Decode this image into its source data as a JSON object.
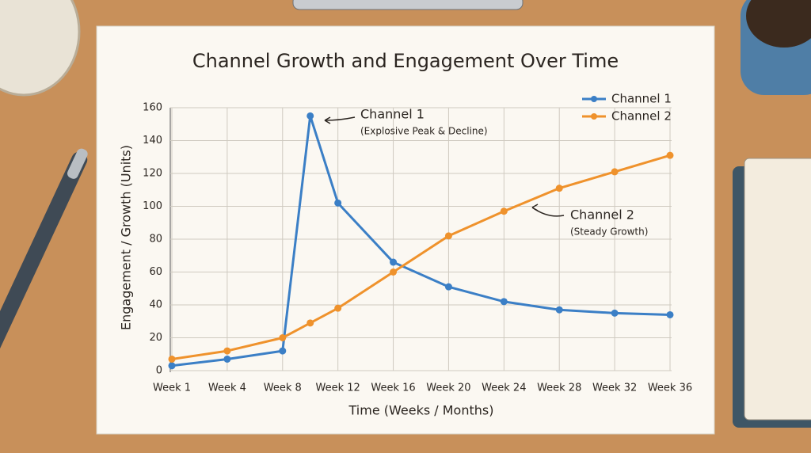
{
  "chart_data": {
    "type": "line",
    "title": "Channel Growth and Engagement Over Time",
    "x_label": "Time (Weeks / Months)",
    "y_label": "Engagement / Growth (Units)",
    "categories": [
      "Week 1",
      "Week 4",
      "Week 8",
      null,
      "Week 12",
      "Week 16",
      "Week 20",
      "Week 24",
      "Week 28",
      "Week 32",
      "Week 36"
    ],
    "series": [
      {
        "name": "Channel 1",
        "color": "#3b7fc6",
        "values": [
          3,
          7,
          12,
          155,
          102,
          66,
          51,
          42,
          37,
          35,
          34
        ]
      },
      {
        "name": "Channel 2",
        "color": "#ef922c",
        "values": [
          7,
          12,
          20,
          29,
          38,
          60,
          82,
          97,
          111,
          121,
          131
        ]
      }
    ],
    "annotations": [
      {
        "title": "Channel 1",
        "text": "(Explosive Peak & Decline)"
      },
      {
        "title": "Channel 2",
        "text": "(Steady Growth)"
      }
    ],
    "ylim": [
      0,
      160
    ],
    "yticks": [
      0,
      20,
      40,
      60,
      80,
      100,
      120,
      140,
      160
    ],
    "grid": true,
    "legend": "upper right"
  }
}
